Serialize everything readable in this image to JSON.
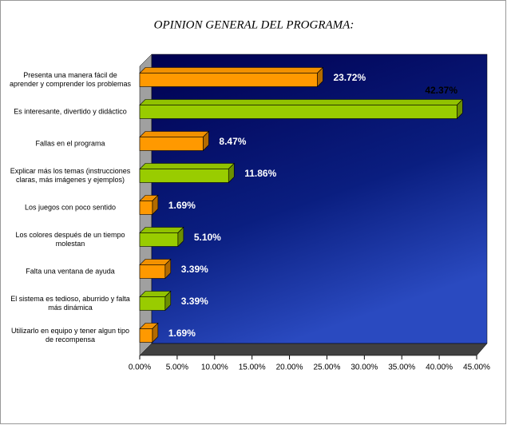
{
  "chart_data": {
    "type": "bar3d",
    "title": "OPINION GENERAL DEL PROGRAMA:",
    "categories": [
      "Presenta una manera fácil de aprender y comprender los problemas",
      "Es interesante, divertido y didáctico",
      "Fallas en el programa",
      "Explicar más los temas (instrucciones claras, más imágenes y ejemplos)",
      "Los juegos con poco sentido",
      "Los colores después de un tiempo molestan",
      "Falta una ventana de ayuda",
      "El sistema es tedioso, aburrido y falta más dinámica",
      "Utilizarlo en equipo y tener algun tipo de recompensa"
    ],
    "values": [
      23.72,
      42.37,
      8.47,
      11.86,
      1.69,
      5.1,
      3.39,
      3.39,
      1.69
    ],
    "value_labels": [
      "23.72%",
      "42.37%",
      "8.47%",
      "11.86%",
      "1.69%",
      "5.10%",
      "3.39%",
      "3.39%",
      "1.69%"
    ],
    "colors": [
      "#ff9900",
      "#99cc00",
      "#ff9900",
      "#99cc00",
      "#ff9900",
      "#99cc00",
      "#ff9900",
      "#99cc00",
      "#ff9900"
    ],
    "xlim": [
      0,
      45
    ],
    "xticks": [
      {
        "value": 0,
        "label": "0.00%"
      },
      {
        "value": 5,
        "label": "5.00%"
      },
      {
        "value": 10,
        "label": "10.00%"
      },
      {
        "value": 15,
        "label": "15.00%"
      },
      {
        "value": 20,
        "label": "20.00%"
      },
      {
        "value": 25,
        "label": "25.00%"
      },
      {
        "value": 30,
        "label": "30.00%"
      },
      {
        "value": 35,
        "label": "35.00%"
      },
      {
        "value": 40,
        "label": "40.00%"
      },
      {
        "value": 45,
        "label": "45.00%"
      }
    ]
  }
}
